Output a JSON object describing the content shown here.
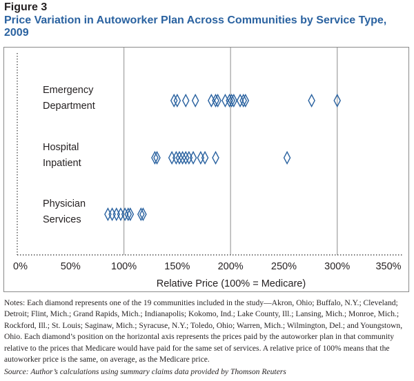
{
  "figure": {
    "label": "Figure 3",
    "title": "Price Variation in Autoworker Plan Across Communities by Service Type, 2009"
  },
  "chart_data": {
    "type": "scatter",
    "title": "Price Variation in Autoworker Plan Across Communities by Service Type, 2009",
    "xlabel": "Relative Price (100% = Medicare)",
    "ylabel": "",
    "xlim": [
      0,
      350
    ],
    "x_ticks": [
      0,
      50,
      100,
      150,
      200,
      250,
      300,
      350
    ],
    "x_tick_labels": [
      "0%",
      "50%",
      "100%",
      "150%",
      "200%",
      "250%",
      "300%",
      "350%"
    ],
    "gridlines_at": [
      100,
      200,
      300
    ],
    "marker": "diamond",
    "categories": [
      {
        "line1": "Emergency",
        "line2": "Department"
      },
      {
        "line1": "Hospital",
        "line2": "Inpatient"
      },
      {
        "line1": "Physician",
        "line2": "Services"
      }
    ],
    "series": [
      {
        "values": [
          147,
          150,
          158,
          167,
          182,
          186,
          188,
          195,
          199,
          201,
          203,
          209,
          212,
          214,
          276,
          300
        ]
      },
      {
        "values": [
          129,
          131,
          145,
          149,
          152,
          155,
          158,
          161,
          165,
          172,
          176,
          186,
          253
        ]
      },
      {
        "values": [
          85,
          89,
          93,
          97,
          101,
          104,
          106,
          116,
          118
        ]
      }
    ],
    "legend": "none"
  },
  "notes": "Notes: Each diamond represents one of the 19 communities included in the study—Akron, Ohio; Buffalo, N.Y.; Cleveland; Detroit; Flint, Mich.; Grand Rapids, Mich.; Indianapolis; Kokomo, Ind.; Lake County, Ill.; Lansing, Mich.; Monroe, Mich.; Rockford, Ill.; St. Louis;  Saginaw, Mich.; Syracuse, N.Y.; Toledo, Ohio; Warren, Mich.; Wilmington, Del.; and Youngstown, Ohio. Each diamond’s position on the horizontal axis represents the prices paid by the autoworker plan in that community relative to the prices that Medicare would have paid for the same set of services. A relative price of 100% means that the autoworker price is the same, on average, as the Medicare price.",
  "source": "Source: Author’s calculations using summary claims data provided by Thomson Reuters",
  "colors": {
    "title": "#2a62a0",
    "marker": "#2a62a0",
    "gridline": "#a6a6a6",
    "text": "#231f20"
  }
}
